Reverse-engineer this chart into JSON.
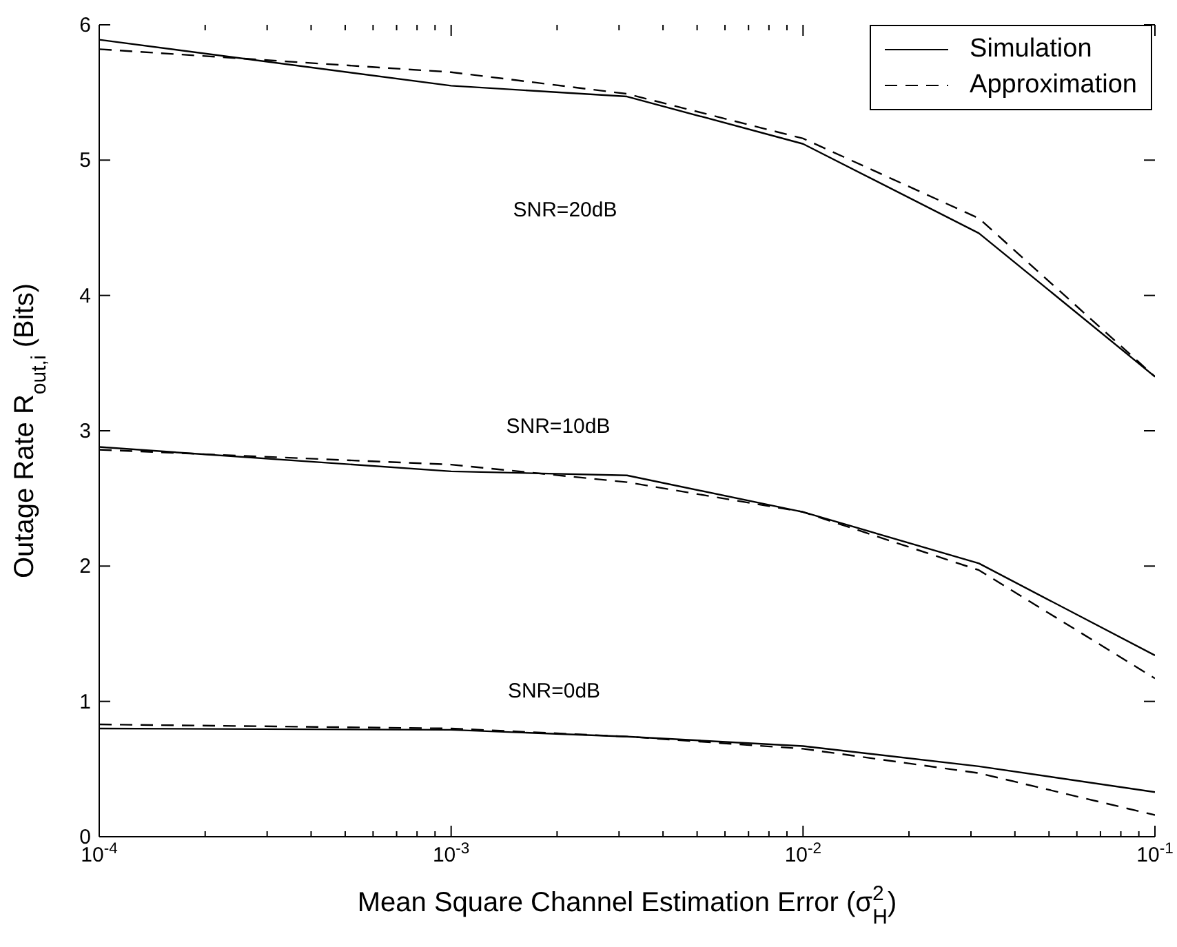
{
  "chart_data": {
    "type": "line",
    "xlabel": "Mean Square Channel Estimation Error (σ$^{2}$$_{H}$)",
    "ylabel": "Outage Rate R$_{out,i}$ (Bits)",
    "log": "x",
    "xlim": [
      0.0001,
      0.1
    ],
    "ylim": [
      0,
      6
    ],
    "yticks": [
      0,
      1,
      2,
      3,
      4,
      5,
      6
    ],
    "xticks": [
      {
        "value": 0.0001,
        "label": "10$^{-4}$"
      },
      {
        "value": 0.0002,
        "label": null
      },
      {
        "value": 0.0003,
        "label": null
      },
      {
        "value": 0.0004,
        "label": null
      },
      {
        "value": 0.0005,
        "label": null
      },
      {
        "value": 0.0006,
        "label": null
      },
      {
        "value": 0.0007,
        "label": null
      },
      {
        "value": 0.0008,
        "label": null
      },
      {
        "value": 0.0009,
        "label": null
      },
      {
        "value": 0.001,
        "label": "10$^{-3}$"
      },
      {
        "value": 0.002,
        "label": null
      },
      {
        "value": 0.003,
        "label": null
      },
      {
        "value": 0.004,
        "label": null
      },
      {
        "value": 0.005,
        "label": null
      },
      {
        "value": 0.006,
        "label": null
      },
      {
        "value": 0.007,
        "label": null
      },
      {
        "value": 0.008,
        "label": null
      },
      {
        "value": 0.009,
        "label": null
      },
      {
        "value": 0.01,
        "label": "10$^{-2}$"
      },
      {
        "value": 0.02,
        "label": null
      },
      {
        "value": 0.03,
        "label": null
      },
      {
        "value": 0.04,
        "label": null
      },
      {
        "value": 0.05,
        "label": null
      },
      {
        "value": 0.06,
        "label": null
      },
      {
        "value": 0.07,
        "label": null
      },
      {
        "value": 0.08,
        "label": null
      },
      {
        "value": 0.09,
        "label": null
      },
      {
        "value": 0.1,
        "label": "10$^{-1}$"
      }
    ],
    "x": [
      0.0001,
      0.001,
      0.00316,
      0.01,
      0.0316,
      0.1
    ],
    "legend": "top right",
    "marker": "none",
    "series": [
      {
        "name": "Simulation",
        "color": "#000000",
        "line_style": "solid",
        "values": [
          5.89,
          5.55,
          5.47,
          5.12,
          4.46,
          3.4
        ]
      },
      {
        "name": "Approximation",
        "color": "#000000",
        "line_style": "dashed",
        "values": [
          5.82,
          5.65,
          5.49,
          5.16,
          4.57,
          3.4
        ]
      },
      {
        "color": "#000000",
        "line_style": "solid",
        "values": [
          2.88,
          2.7,
          2.67,
          2.4,
          2.02,
          1.34
        ]
      },
      {
        "color": "#000000",
        "line_style": "dashed",
        "values": [
          2.86,
          2.75,
          2.62,
          2.4,
          1.97,
          1.17
        ]
      },
      {
        "color": "#000000",
        "line_style": "solid",
        "values": [
          0.8,
          0.79,
          0.74,
          0.67,
          0.52,
          0.33
        ]
      },
      {
        "color": "#000000",
        "line_style": "dashed",
        "values": [
          0.83,
          0.8,
          0.74,
          0.65,
          0.47,
          0.16
        ]
      }
    ],
    "annotations": [
      "SNR=20dB",
      "SNR=10dB",
      "SNR=0dB"
    ]
  }
}
